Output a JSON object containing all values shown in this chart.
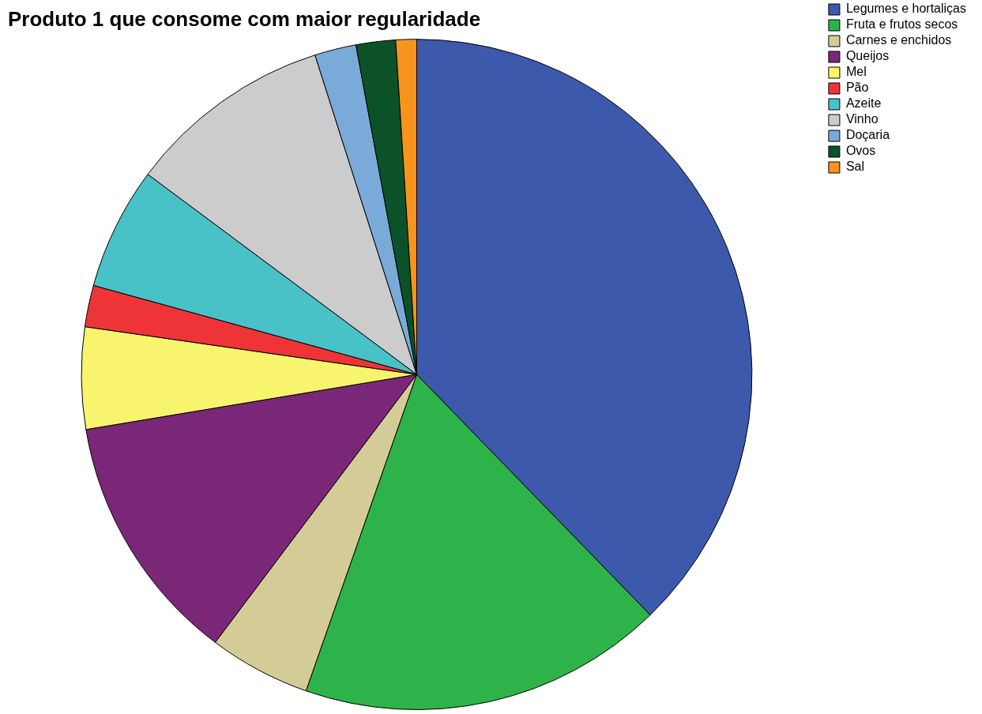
{
  "chart_data": {
    "type": "pie",
    "title": "Produto 1 que consome com maior regularidade",
    "categories": [
      "Legumes e hortaliças",
      "Fruta e frutos secos",
      "Carnes e enchidos",
      "Queijos",
      "Mel",
      "Pão",
      "Azeite",
      "Vinho",
      "Doçaria",
      "Ovos",
      "Sal"
    ],
    "values": [
      37.7,
      17.6,
      4.9,
      12.1,
      4.9,
      2.0,
      5.9,
      9.9,
      2.0,
      1.9,
      1.0
    ],
    "colors": [
      "#3d59ab",
      "#2db34a",
      "#d4cc97",
      "#7b2777",
      "#f9f46d",
      "#ef3438",
      "#48c1c7",
      "#cccccc",
      "#7aaad8",
      "#0b5229",
      "#f7941d"
    ],
    "legend": "top right"
  }
}
